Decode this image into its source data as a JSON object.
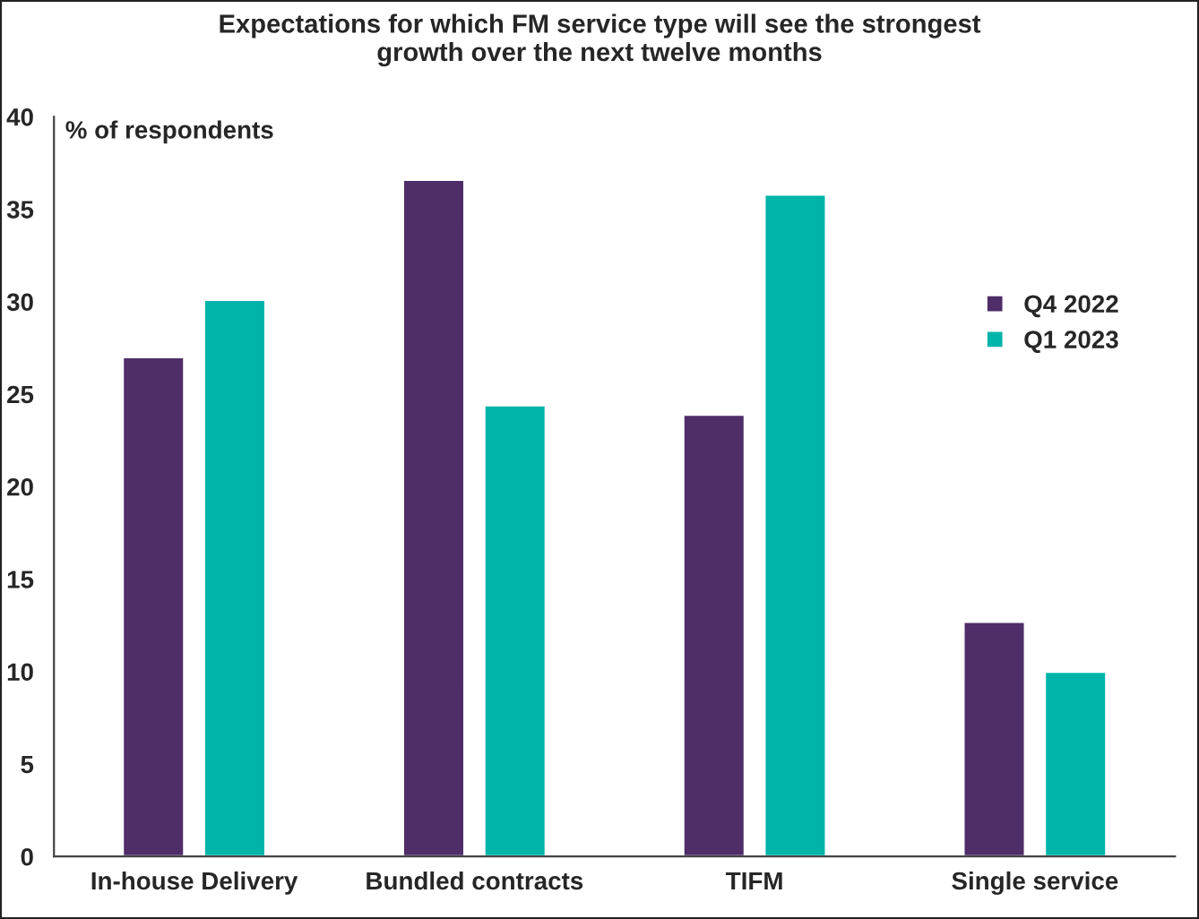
{
  "chart_data": {
    "type": "bar",
    "title": "Expectations for which FM service type will see the strongest\ngrowth over the next twelve months",
    "ylabel": "% of respondents",
    "categories": [
      "In-house Delivery",
      "Bundled contracts",
      "TIFM",
      "Single service"
    ],
    "series": [
      {
        "name": "Q4 2022",
        "color": "#4f2d69",
        "values": [
          27.0,
          36.6,
          23.9,
          12.7
        ]
      },
      {
        "name": "Q1 2023",
        "color": "#00b4aa",
        "values": [
          30.1,
          24.4,
          35.8,
          10.0
        ]
      }
    ],
    "ylim": [
      0,
      40
    ],
    "yticks": [
      0,
      5,
      10,
      15,
      20,
      25,
      30,
      35,
      40
    ],
    "grid": false,
    "legend": "right"
  }
}
